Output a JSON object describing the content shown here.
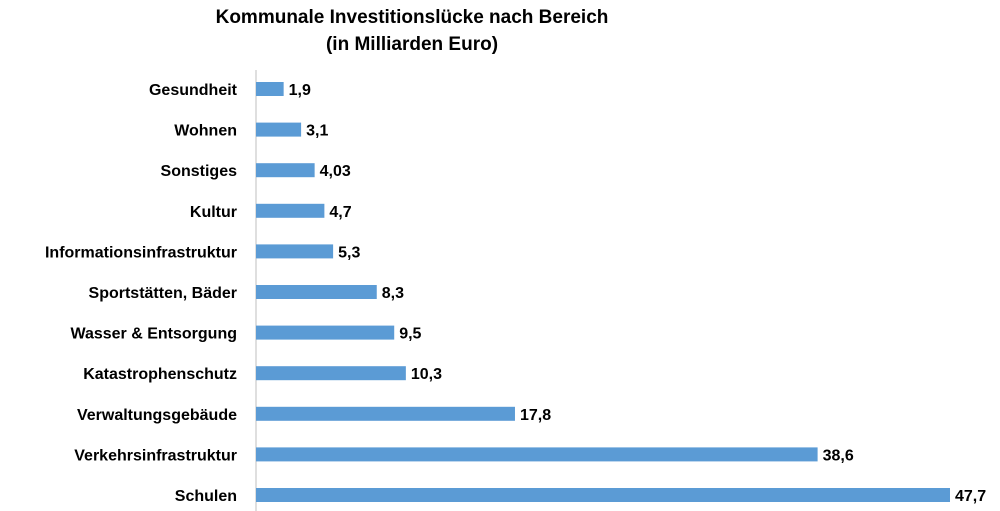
{
  "chart_data": {
    "type": "bar",
    "orientation": "horizontal",
    "title": "Kommunale Investitionslücke nach Bereich",
    "subtitle": "(in Milliarden Euro)",
    "categories": [
      "Gesundheit",
      "Wohnen",
      "Sonstiges",
      "Kultur",
      "Informationsinfrastruktur",
      "Sportstätten, Bäder",
      "Wasser & Entsorgung",
      "Katastrophenschutz",
      "Verwaltungsgebäude",
      "Verkehrsinfrastruktur",
      "Schulen"
    ],
    "values": [
      1.9,
      3.1,
      4.03,
      4.7,
      5.3,
      8.3,
      9.5,
      10.3,
      17.8,
      38.6,
      47.7
    ],
    "value_labels": [
      "1,9",
      "3,1",
      "4,03",
      "4,7",
      "5,3",
      "8,3",
      "9,5",
      "10,3",
      "17,8",
      "38,6",
      "47,7"
    ],
    "xlim": [
      0,
      47.7
    ],
    "bar_color": "#5b9bd5",
    "grid": false,
    "legend": "none"
  }
}
